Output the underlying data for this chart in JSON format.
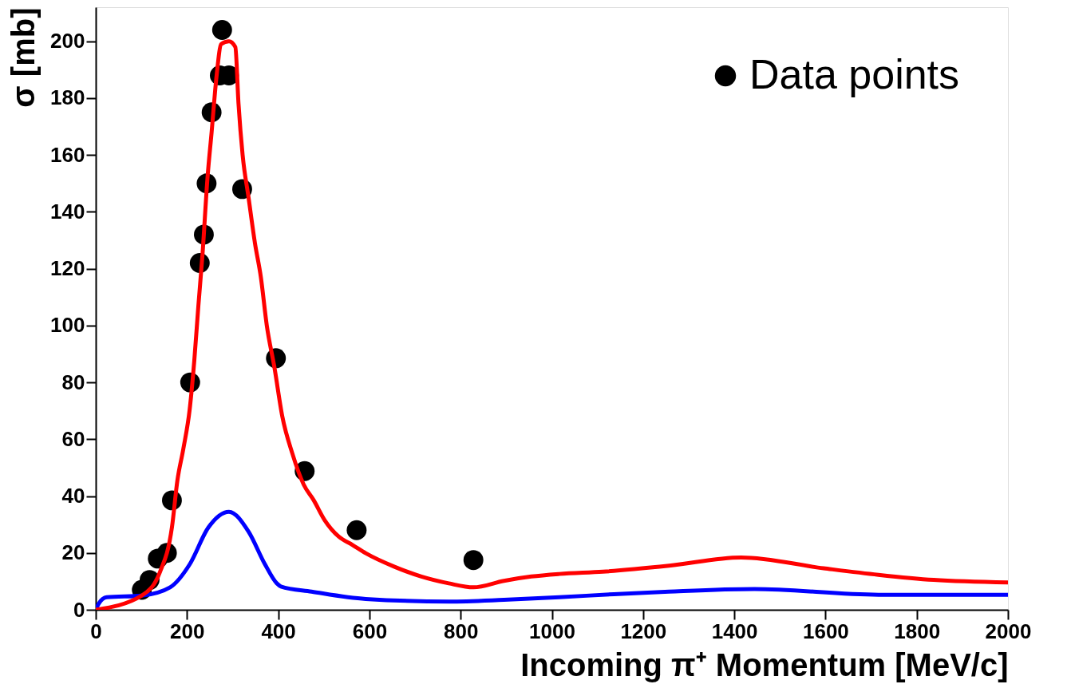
{
  "chart_data": {
    "type": "line",
    "xlabel": "Incoming π⁺ Momentum [MeV/c]",
    "ylabel": "σ [mb]",
    "xlim": [
      0,
      2000
    ],
    "ylim": [
      0,
      212
    ],
    "xticks": [
      0,
      200,
      400,
      600,
      800,
      1000,
      1200,
      1400,
      1600,
      1800,
      2000
    ],
    "yticks": [
      0,
      20,
      40,
      60,
      80,
      100,
      120,
      140,
      160,
      180,
      200
    ],
    "grid": false,
    "legend": "top right",
    "line_style": "solid",
    "series": [
      {
        "color": "#0000ff",
        "x": [
          0,
          7,
          24,
          101,
          163,
          206,
          247,
          292,
          335,
          371,
          397,
          406,
          473,
          592,
          774,
          895,
          1016,
          1136,
          1257,
          1444,
          1716,
          2000
        ],
        "values": [
          0,
          2.3,
          4.4,
          5,
          7.9,
          16,
          29,
          34.5,
          27.5,
          16,
          9.3,
          8.2,
          6.4,
          3.8,
          2.9,
          3.5,
          4.4,
          5.5,
          6.4,
          7.3,
          5.3,
          5.3
        ]
      },
      {
        "color": "#ff0000",
        "x": [
          0,
          101,
          141,
          167,
          179,
          192,
          206,
          216,
          225,
          234,
          245,
          254,
          265,
          275,
          292,
          306,
          313,
          322,
          335,
          349,
          362,
          375,
          392,
          409,
          431,
          456,
          478,
          502,
          533,
          563,
          592,
          654,
          714,
          774,
          828,
          895,
          955,
          1016,
          1112,
          1257,
          1415,
          1596,
          1716,
          1837,
          2000
        ],
        "values": [
          0,
          5,
          13.4,
          29,
          45.5,
          56.6,
          70.6,
          87.6,
          107,
          125,
          152,
          168,
          188,
          199,
          200,
          198,
          178,
          160,
          145,
          129,
          117,
          100,
          85,
          68,
          55,
          44,
          38.5,
          31.5,
          25.7,
          22.8,
          19.9,
          15.2,
          11.7,
          9.3,
          7.9,
          10.2,
          11.7,
          12.6,
          13.4,
          15.5,
          18.4,
          14.6,
          12.3,
          10.5,
          9.6
        ]
      },
      {
        "type": "scatter",
        "name": "Data points",
        "color": "#000000",
        "marker": "circle",
        "x": [
          101,
          118,
          136,
          156,
          167,
          207,
          228,
          237,
          243,
          254,
          272,
          277,
          292,
          321,
          395,
          458,
          572,
          828
        ],
        "values": [
          7,
          10.5,
          18,
          20,
          38.5,
          80,
          122,
          132,
          150,
          175,
          188,
          204,
          188,
          148,
          88.5,
          48.8,
          28,
          17.5
        ]
      }
    ]
  }
}
